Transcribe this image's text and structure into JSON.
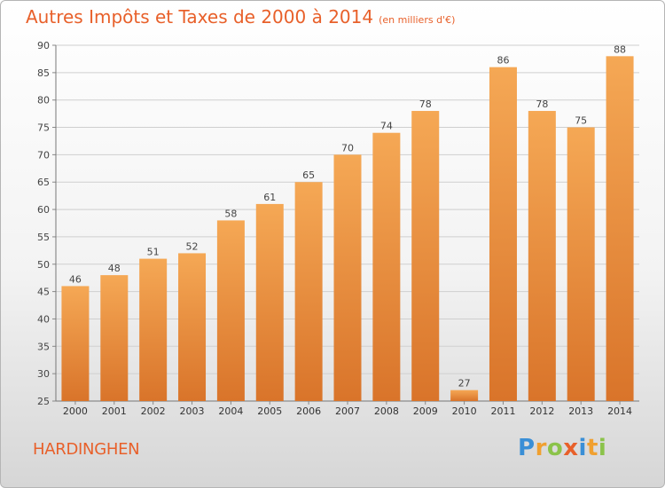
{
  "header": {
    "title": "Autres Impôts et Taxes de 2000 à 2014",
    "subtitle": "(en milliers d'€)"
  },
  "footer": {
    "commune": "HARDINGHEN",
    "logo": [
      "P",
      "r",
      "o",
      "x",
      "i",
      "t",
      "i"
    ],
    "logo_colors": [
      "#3a8fd6",
      "#f0a030",
      "#8bc34a",
      "#e8602a",
      "#3a8fd6",
      "#f0a030",
      "#8bc34a"
    ]
  },
  "colors": {
    "title": "#e8602a",
    "bar_light": "#f5a855",
    "bar_dark": "#d9742a",
    "grid": "#cfcfcf"
  },
  "chart_data": {
    "type": "bar",
    "categories": [
      "2000",
      "2001",
      "2002",
      "2003",
      "2004",
      "2005",
      "2006",
      "2007",
      "2008",
      "2009",
      "2010",
      "2011",
      "2012",
      "2013",
      "2014"
    ],
    "values": [
      46,
      48,
      51,
      52,
      58,
      61,
      65,
      70,
      74,
      78,
      27,
      86,
      78,
      75,
      88
    ],
    "ylim": [
      25,
      90
    ],
    "yticks": [
      25,
      30,
      35,
      40,
      45,
      50,
      55,
      60,
      65,
      70,
      75,
      80,
      85,
      90
    ],
    "grid": true,
    "data_labels": true
  }
}
